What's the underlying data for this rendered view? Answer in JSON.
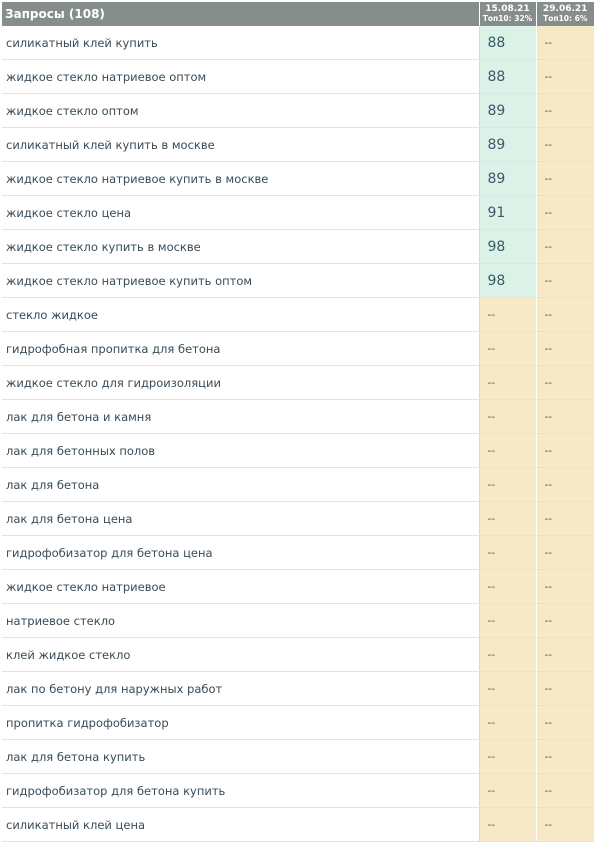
{
  "header": {
    "title": "Запросы (108)",
    "col1_date": "15.08.21",
    "col1_top": "Топ10: 32%",
    "col2_date": "29.06.21",
    "col2_top": "Топ10: 6%"
  },
  "rows": [
    {
      "query": "силикатный клей купить",
      "v1": "88",
      "v2": "--"
    },
    {
      "query": "жидкое стекло натриевое оптом",
      "v1": "88",
      "v2": "--"
    },
    {
      "query": "жидкое стекло оптом",
      "v1": "89",
      "v2": "--"
    },
    {
      "query": "силикатный клей купить в москве",
      "v1": "89",
      "v2": "--"
    },
    {
      "query": "жидкое стекло натриевое купить в москве",
      "v1": "89",
      "v2": "--"
    },
    {
      "query": "жидкое стекло цена",
      "v1": "91",
      "v2": "--"
    },
    {
      "query": "жидкое стекло купить в москве",
      "v1": "98",
      "v2": "--"
    },
    {
      "query": "жидкое стекло натриевое купить оптом",
      "v1": "98",
      "v2": "--"
    },
    {
      "query": "стекло жидкое",
      "v1": "--",
      "v2": "--"
    },
    {
      "query": "гидрофобная пропитка для бетона",
      "v1": "--",
      "v2": "--"
    },
    {
      "query": "жидкое стекло для гидроизоляции",
      "v1": "--",
      "v2": "--"
    },
    {
      "query": "лак для бетона и камня",
      "v1": "--",
      "v2": "--"
    },
    {
      "query": "лак для бетонных полов",
      "v1": "--",
      "v2": "--"
    },
    {
      "query": "лак для бетона",
      "v1": "--",
      "v2": "--"
    },
    {
      "query": "лак для бетона цена",
      "v1": "--",
      "v2": "--"
    },
    {
      "query": "гидрофобизатор для бетона цена",
      "v1": "--",
      "v2": "--"
    },
    {
      "query": "жидкое стекло натриевое",
      "v1": "--",
      "v2": "--"
    },
    {
      "query": "натриевое стекло",
      "v1": "--",
      "v2": "--"
    },
    {
      "query": "клей жидкое стекло",
      "v1": "--",
      "v2": "--"
    },
    {
      "query": "лак по бетону для наружных работ",
      "v1": "--",
      "v2": "--"
    },
    {
      "query": "пропитка гидрофобизатор",
      "v1": "--",
      "v2": "--"
    },
    {
      "query": "лак для бетона купить",
      "v1": "--",
      "v2": "--"
    },
    {
      "query": "гидрофобизатор для бетона купить",
      "v1": "--",
      "v2": "--"
    },
    {
      "query": "силикатный клей цена",
      "v1": "--",
      "v2": "--"
    }
  ]
}
